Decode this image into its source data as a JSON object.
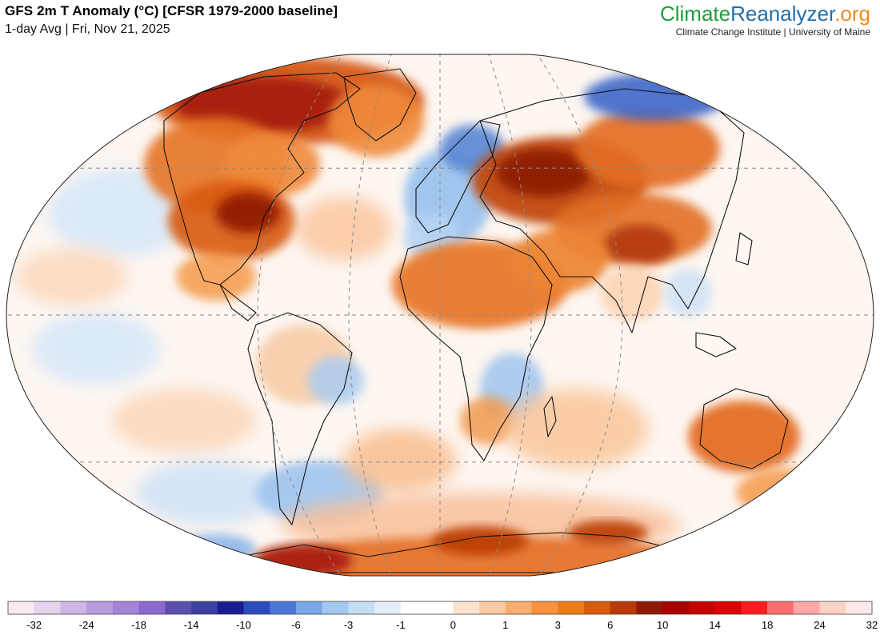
{
  "header": {
    "title": "GFS 2m T Anomaly (°C) [CFSR 1979-2000 baseline]",
    "subtitle": "1-day Avg | Fri, Nov 21, 2025"
  },
  "brand": {
    "part1": "Climate",
    "part2": "Reanalyzer",
    "part3": ".org",
    "tagline": "Climate Change Institute | University of Maine"
  },
  "colors": {
    "brand_green": "#1f9d3a",
    "brand_blue": "#1e6fae",
    "brand_orange": "#f08a1c"
  },
  "map": {
    "projection": "Winkel Tripel (global)",
    "graticule": "dashed",
    "regions": [
      {
        "name": "Arctic Canada / Greenland",
        "anomaly": "warm"
      },
      {
        "name": "Eastern Europe / Siberia",
        "anomaly": "warm"
      },
      {
        "name": "North Africa / Middle East",
        "anomaly": "warm"
      },
      {
        "name": "Central & Eastern United States",
        "anomaly": "warm"
      },
      {
        "name": "Western Europe",
        "anomaly": "cool"
      },
      {
        "name": "Northeast Siberia",
        "anomaly": "cool"
      },
      {
        "name": "Australia",
        "anomaly": "warm"
      },
      {
        "name": "Antarctica",
        "anomaly": "warm"
      },
      {
        "name": "Southern Ocean near South America",
        "anomaly": "cool"
      }
    ]
  },
  "legend": {
    "unit": "°C",
    "bins": [
      "#fbe8f0",
      "#e6d3ee",
      "#d0b5e8",
      "#b99be0",
      "#a583d8",
      "#8c68cf",
      "#5b4fb0",
      "#3a3fa0",
      "#1a1d8f",
      "#2a4cbd",
      "#4a78d6",
      "#79a8e8",
      "#a3c8f2",
      "#c6ddf6",
      "#e4eefb",
      "#ffffff",
      "#ffffff",
      "#fde3cf",
      "#fcc9a0",
      "#f9ad6e",
      "#f69240",
      "#f07c18",
      "#d85a0c",
      "#b93a06",
      "#8e1a03",
      "#a80000",
      "#c80000",
      "#e00000",
      "#ff1c1c",
      "#ff6e6e",
      "#ffa8a8",
      "#ffd2c4",
      "#ffe8ea"
    ],
    "labels": [
      "-32",
      "-24",
      "-18",
      "-14",
      "-10",
      "-6",
      "-3",
      "-1",
      "0",
      "1",
      "3",
      "6",
      "10",
      "14",
      "18",
      "24",
      "32"
    ]
  }
}
